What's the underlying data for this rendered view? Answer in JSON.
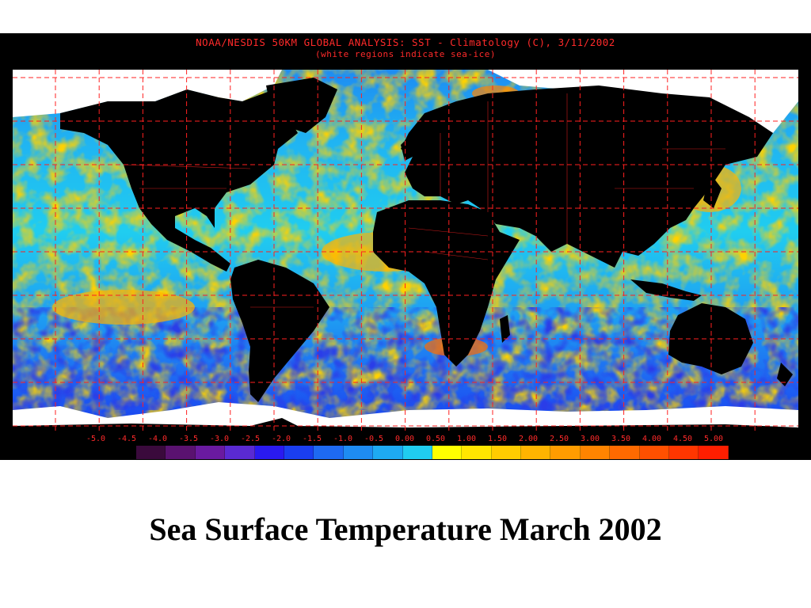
{
  "map": {
    "title_line1": "NOAA/NESDIS 50KM GLOBAL ANALYSIS: SST - Climatology (C), 3/11/2002",
    "title_line2": "(white regions indicate sea-ice)",
    "legend_labels": [
      "-5.0",
      "-4.5",
      "-4.0",
      "-3.5",
      "-3.0",
      "-2.5",
      "-2.0",
      "-1.5",
      "-1.0",
      "-0.5",
      "0.00",
      "0.50",
      "1.00",
      "1.50",
      "2.00",
      "2.50",
      "3.00",
      "3.50",
      "4.00",
      "4.50",
      "5.00"
    ],
    "legend_colors": [
      "#3a0a3c",
      "#5a1270",
      "#6a1aa0",
      "#5a2ad2",
      "#2a1af0",
      "#1a3ef0",
      "#1e6af2",
      "#1e8cf2",
      "#1eaaf2",
      "#20cdf0",
      "#ffff00",
      "#ffe600",
      "#ffcc00",
      "#ffb400",
      "#ff9c00",
      "#ff8400",
      "#ff6a00",
      "#ff5000",
      "#ff3600",
      "#ff1e00"
    ],
    "colors": {
      "background": "#000000",
      "grid": "#ff2020",
      "title": "#ff2a2a",
      "land": "#000000",
      "sea_ice": "#ffffff"
    }
  },
  "caption": "Sea Surface Temperature March 2002"
}
